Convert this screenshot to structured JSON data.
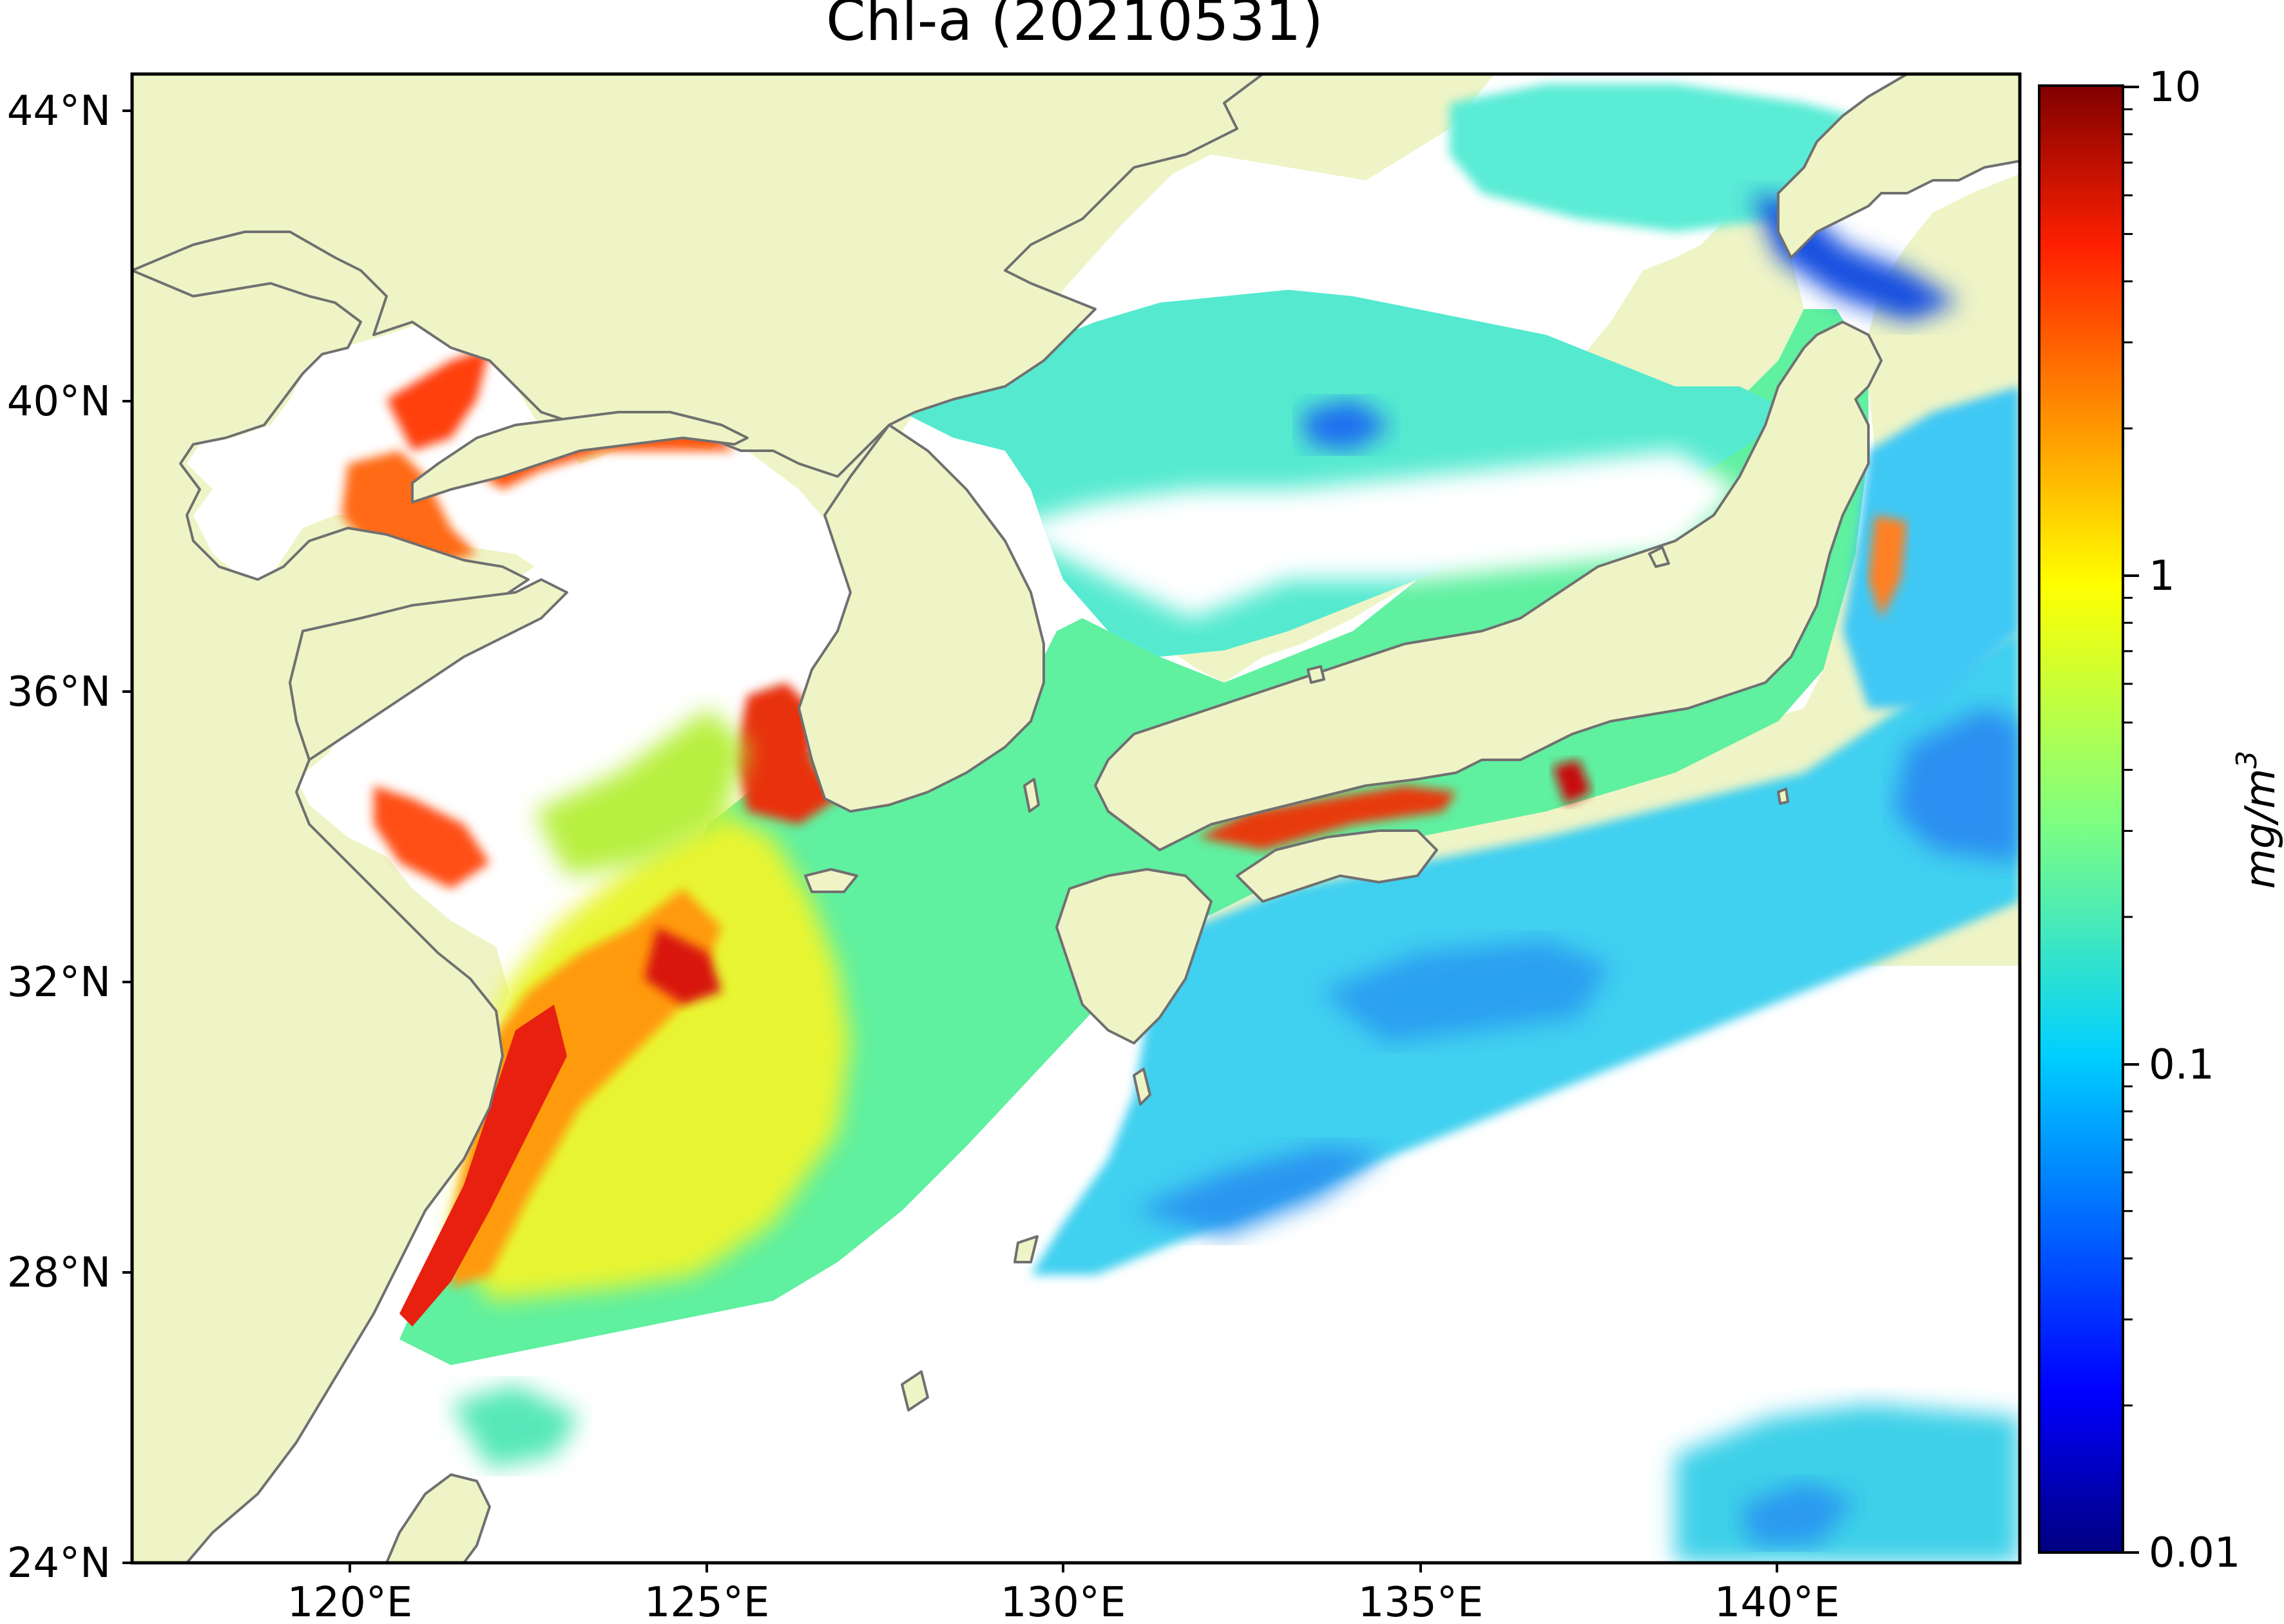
{
  "title": "Chl-a (20210531)",
  "map": {
    "lat_labels": [
      "44°N",
      "40°N",
      "36°N",
      "32°N",
      "28°N",
      "24°N"
    ],
    "lon_labels": [
      "120°E",
      "125°E",
      "130°E",
      "135°E",
      "140°E"
    ],
    "lat_range": [
      24,
      44.5
    ],
    "lon_range": [
      116.5,
      143
    ],
    "land_color": "#eff4c6",
    "coastline_color": "#707070",
    "no_data_color": "#ffffff"
  },
  "colorbar": {
    "label": "mg/m",
    "label_superscript": "3",
    "tick_labels": [
      "10",
      "1",
      "0.1",
      "0.01"
    ],
    "scale": "log",
    "range": [
      0.01,
      10
    ],
    "colormap": "jet",
    "colors": [
      "#000080",
      "#0000ff",
      "#0080ff",
      "#00ffff",
      "#80ff80",
      "#ffff00",
      "#ff8000",
      "#ff0000",
      "#800000"
    ]
  }
}
